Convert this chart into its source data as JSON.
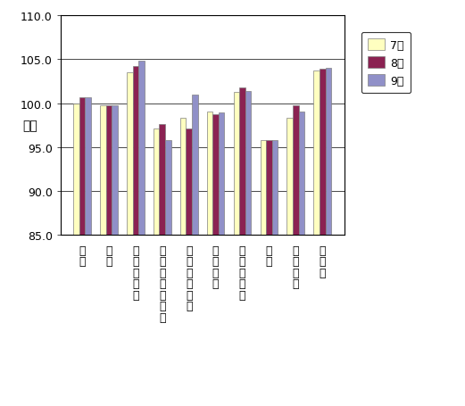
{
  "categories": [
    "食料",
    "住居",
    "光熱・水道",
    "家具・家事用品",
    "被服及び履物",
    "保健医療",
    "交通・通信",
    "教育",
    "教養娯楽",
    "諸雑費"
  ],
  "cat_labels_vertical": [
    "食\n料",
    "住\n居",
    "光\n熱\n・\n水\n道",
    "家\n具\n・\n家\n事\n用\n品",
    "被\n服\n及\nび\n履\n物",
    "保\n健\n医\n療",
    "交\n通\n・\n通\n信",
    "教\n育",
    "教\n養\n娯\n楽",
    "諸\n雑\n費"
  ],
  "series": [
    {
      "label": "7月",
      "color": "#FFFFC0",
      "edgecolor": "#808080",
      "values": [
        100.0,
        99.8,
        103.5,
        97.1,
        98.3,
        99.1,
        101.3,
        95.8,
        98.3,
        103.7
      ]
    },
    {
      "label": "8月",
      "color": "#8B2252",
      "edgecolor": "#808080",
      "values": [
        100.7,
        99.8,
        104.2,
        97.6,
        97.1,
        98.8,
        101.8,
        95.8,
        99.8,
        103.9
      ]
    },
    {
      "label": "9月",
      "color": "#9090C8",
      "edgecolor": "#808080",
      "values": [
        100.7,
        99.8,
        104.8,
        95.8,
        101.0,
        99.0,
        101.4,
        95.8,
        99.1,
        104.0
      ]
    }
  ],
  "ylabel": "指数",
  "ylim": [
    85.0,
    110.0
  ],
  "yticks": [
    85.0,
    90.0,
    95.0,
    100.0,
    105.0,
    110.0
  ],
  "background_color": "#ffffff",
  "bar_width": 0.22
}
